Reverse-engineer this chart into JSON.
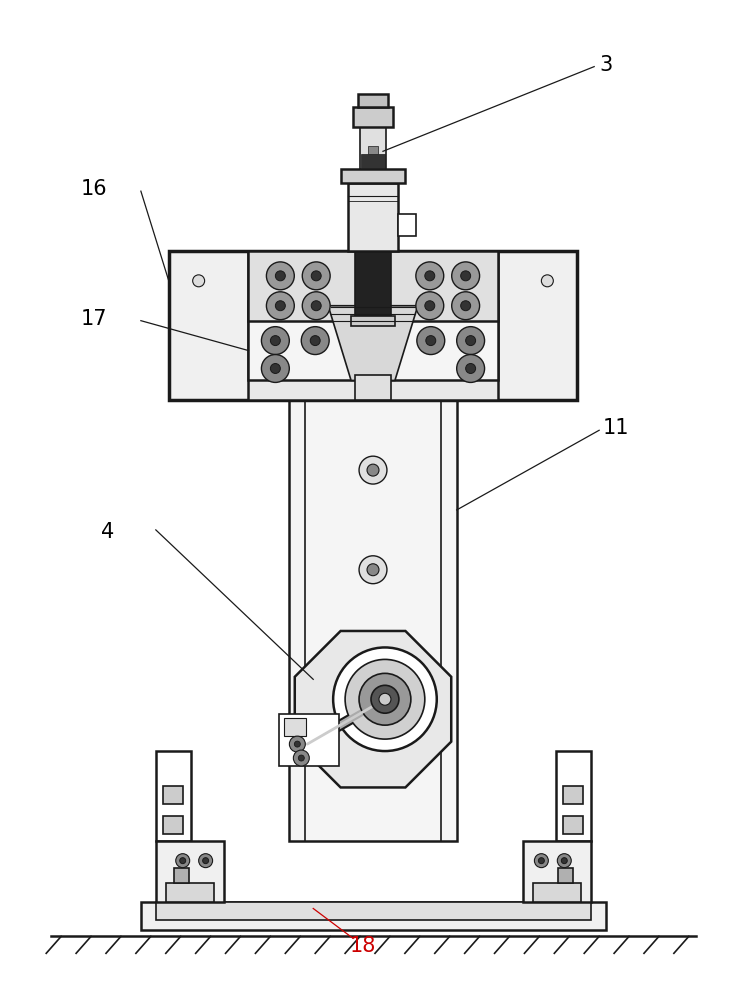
{
  "bg_color": "#ffffff",
  "line_color": "#1a1a1a",
  "figure_width": 7.47,
  "figure_height": 10.0,
  "dpi": 100
}
